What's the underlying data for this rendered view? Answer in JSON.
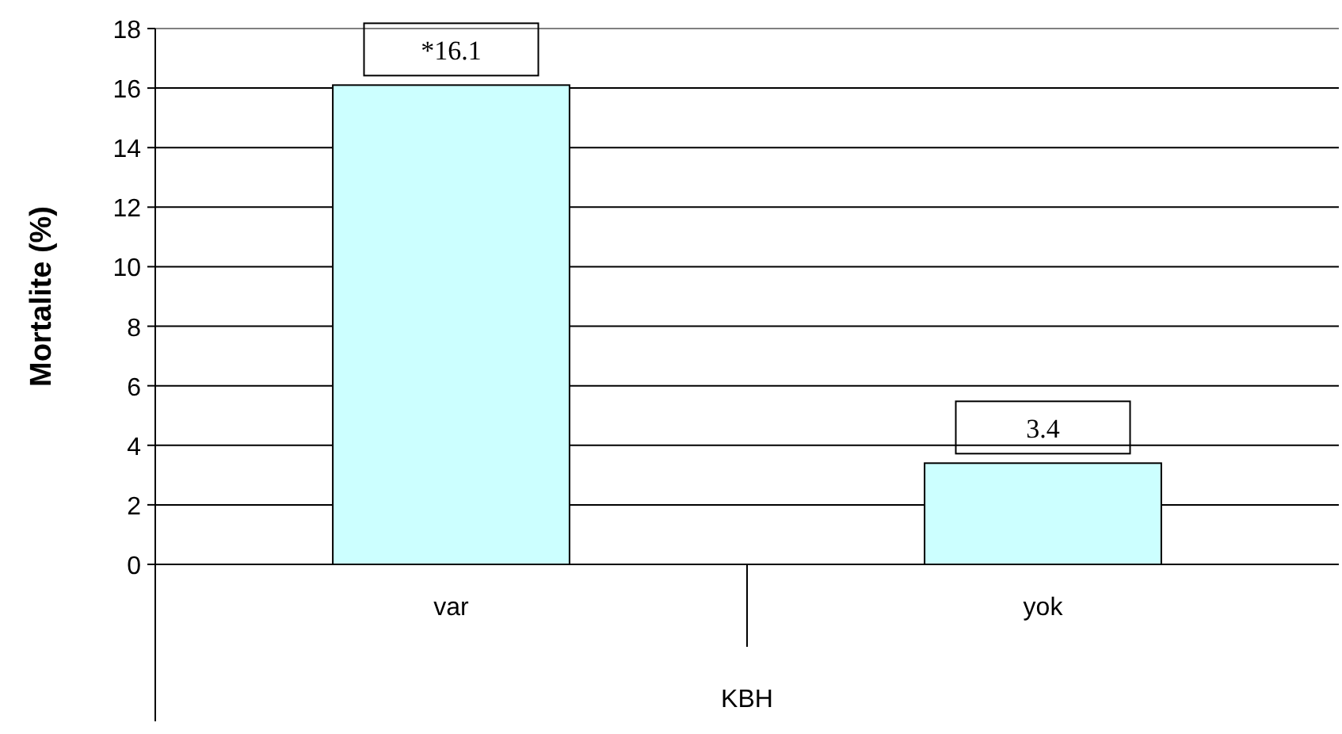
{
  "chart_data": {
    "type": "bar",
    "xlabel": "KBH",
    "ylabel": "Mortalite (%)",
    "categories": [
      "var",
      "yok"
    ],
    "values": [
      16.1,
      3.4
    ],
    "value_labels": [
      "*16.1",
      "3.4"
    ],
    "color": "#ccffff",
    "ylim": [
      0,
      18
    ],
    "yticks": [
      0,
      2,
      4,
      6,
      8,
      10,
      12,
      14,
      16,
      18
    ],
    "grid": "y"
  }
}
